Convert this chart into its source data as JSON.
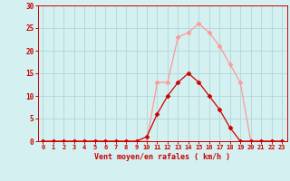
{
  "x_labels": [
    0,
    1,
    2,
    3,
    4,
    5,
    6,
    7,
    8,
    9,
    10,
    11,
    12,
    13,
    14,
    15,
    16,
    17,
    18,
    19,
    20,
    21,
    22,
    23
  ],
  "avg_wind": [
    0,
    0,
    0,
    0,
    0,
    0,
    0,
    0,
    0,
    0,
    1,
    6,
    10,
    13,
    15,
    13,
    10,
    7,
    3,
    0,
    0,
    0,
    0,
    0
  ],
  "gust_wind": [
    0,
    0,
    0,
    0,
    0,
    0,
    0,
    0,
    0,
    0,
    0,
    13,
    13,
    23,
    24,
    26,
    24,
    21,
    17,
    13,
    0,
    0,
    0,
    0
  ],
  "bg_color": "#d4f0f0",
  "grid_color": "#aed8d8",
  "avg_color": "#cc0000",
  "gust_color": "#ff9999",
  "xlabel": "Vent moyen/en rafales ( km/h )",
  "xlabel_color": "#cc0000",
  "tick_color": "#cc0000",
  "ylim": [
    0,
    30
  ],
  "yticks": [
    0,
    5,
    10,
    15,
    20,
    25,
    30
  ],
  "marker": "D",
  "marker_size": 2.5
}
